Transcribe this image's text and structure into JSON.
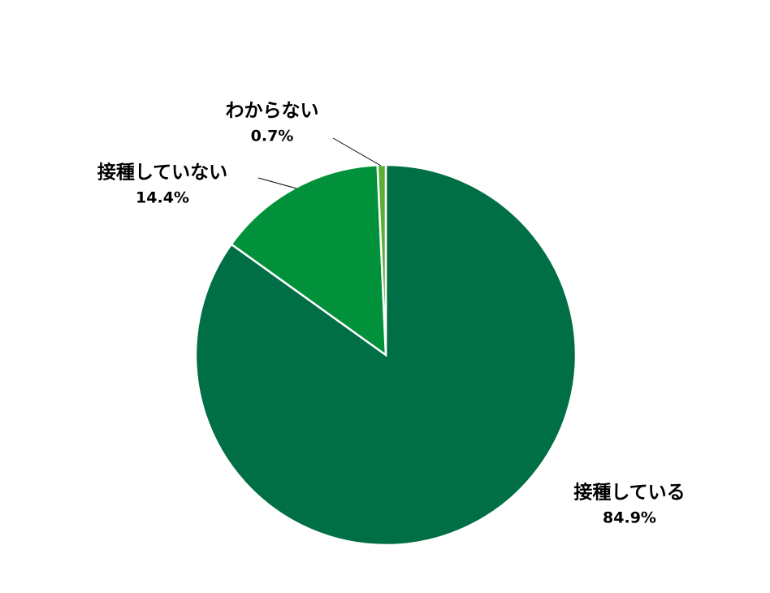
{
  "chart_data": {
    "type": "pie",
    "categories": [
      "接種している",
      "接種していない",
      "わからない"
    ],
    "values": [
      84.9,
      14.4,
      0.7
    ],
    "value_labels": [
      "84.9%",
      "14.4%",
      "0.7%"
    ],
    "colors": [
      "#006f45",
      "#00913a",
      "#5aae32"
    ]
  }
}
